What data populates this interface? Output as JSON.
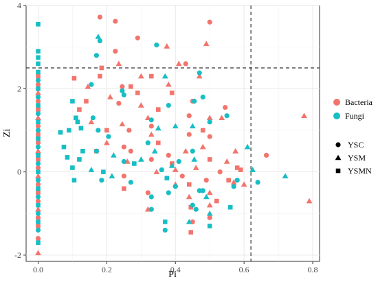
{
  "chart_data": {
    "type": "scatter",
    "title": "",
    "xlabel": "Pi",
    "ylabel": "Zi",
    "xlim": [
      -0.035,
      0.82
    ],
    "ylim": [
      -2.15,
      4.0
    ],
    "xticks": [
      0.0,
      0.2,
      0.4,
      0.6,
      0.8
    ],
    "xtick_labels": [
      "0.0",
      "0.2",
      "0.4",
      "0.6",
      "0.8"
    ],
    "yticks": [
      -2,
      0,
      2,
      4
    ],
    "ytick_labels": [
      "-2",
      "0",
      "2",
      "4"
    ],
    "grid": true,
    "thresholds": {
      "x": 0.62,
      "y": 2.5,
      "style": "dashed"
    },
    "legend_position": "right",
    "color_legend": [
      {
        "name": "Bacteria",
        "color": "#F2756D"
      },
      {
        "name": "Fungi",
        "color": "#17BEC4"
      }
    ],
    "shape_legend": [
      {
        "name": "YSC",
        "shape": "circle"
      },
      {
        "name": "YSM",
        "shape": "triangle"
      },
      {
        "name": "YSMN",
        "shape": "square"
      }
    ],
    "series": [
      {
        "group": "Bacteria",
        "color": "#F2756D",
        "points": [
          [
            0.0,
            2.3,
            "s"
          ],
          [
            0.0,
            2.1,
            "c"
          ],
          [
            0.0,
            1.9,
            "t"
          ],
          [
            0.0,
            1.7,
            "c"
          ],
          [
            0.0,
            1.5,
            "s"
          ],
          [
            0.0,
            1.3,
            "t"
          ],
          [
            0.0,
            1.1,
            "c"
          ],
          [
            0.0,
            0.9,
            "s"
          ],
          [
            0.0,
            0.7,
            "c"
          ],
          [
            0.0,
            0.5,
            "t"
          ],
          [
            0.0,
            0.3,
            "s"
          ],
          [
            0.0,
            0.1,
            "c"
          ],
          [
            0.0,
            -0.1,
            "t"
          ],
          [
            0.0,
            -0.3,
            "c"
          ],
          [
            0.0,
            -0.5,
            "s"
          ],
          [
            0.0,
            -0.7,
            "c"
          ],
          [
            0.0,
            -0.9,
            "t"
          ],
          [
            0.0,
            -1.1,
            "c"
          ],
          [
            0.0,
            -1.3,
            "s"
          ],
          [
            0.0,
            -1.6,
            "c"
          ],
          [
            0.0,
            -1.95,
            "t"
          ],
          [
            0.18,
            3.72,
            "c"
          ],
          [
            0.225,
            3.62,
            "c"
          ],
          [
            0.29,
            3.22,
            "c"
          ],
          [
            0.375,
            3.02,
            "t"
          ],
          [
            0.5,
            3.6,
            "c"
          ],
          [
            0.49,
            3.08,
            "t"
          ],
          [
            0.225,
            2.9,
            "c"
          ],
          [
            0.185,
            2.5,
            "s"
          ],
          [
            0.18,
            2.3,
            "s"
          ],
          [
            0.235,
            2.6,
            "t"
          ],
          [
            0.27,
            2.05,
            "s"
          ],
          [
            0.235,
            1.65,
            "c"
          ],
          [
            0.245,
            2.05,
            "c"
          ],
          [
            0.3,
            2.3,
            "t"
          ],
          [
            0.33,
            2.3,
            "s"
          ],
          [
            0.41,
            2.6,
            "t"
          ],
          [
            0.43,
            2.6,
            "c"
          ],
          [
            0.38,
            2.1,
            "t"
          ],
          [
            0.39,
            1.9,
            "s"
          ],
          [
            0.35,
            1.5,
            "s"
          ],
          [
            0.3,
            1.6,
            "t"
          ],
          [
            0.32,
            1.3,
            "t"
          ],
          [
            0.45,
            1.7,
            "c"
          ],
          [
            0.47,
            2.3,
            "t"
          ],
          [
            0.545,
            1.55,
            "c"
          ],
          [
            0.535,
            1.3,
            "t"
          ],
          [
            0.5,
            1.3,
            "t"
          ],
          [
            0.44,
            0.9,
            "c"
          ],
          [
            0.43,
            0.5,
            "t"
          ],
          [
            0.33,
            0.9,
            "t"
          ],
          [
            0.35,
            0.7,
            "s"
          ],
          [
            0.25,
            0.6,
            "c"
          ],
          [
            0.245,
            1.15,
            "t"
          ],
          [
            0.2,
            1.0,
            "s"
          ],
          [
            0.2,
            0.7,
            "t"
          ],
          [
            0.14,
            1.7,
            "s"
          ],
          [
            0.155,
            1.2,
            "t"
          ],
          [
            0.12,
            1.5,
            "s"
          ],
          [
            0.105,
            2.25,
            "s"
          ],
          [
            0.145,
            2.05,
            "t"
          ],
          [
            0.21,
            1.8,
            "t"
          ],
          [
            0.265,
            1.0,
            "c"
          ],
          [
            0.27,
            0.5,
            "c"
          ],
          [
            0.33,
            0.3,
            "c"
          ],
          [
            0.345,
            0.0,
            "t"
          ],
          [
            0.38,
            0.4,
            "c"
          ],
          [
            0.39,
            0.2,
            "s"
          ],
          [
            0.4,
            0.05,
            "t"
          ],
          [
            0.42,
            -0.1,
            "c"
          ],
          [
            0.44,
            -0.3,
            "s"
          ],
          [
            0.46,
            0.1,
            "t"
          ],
          [
            0.48,
            0.6,
            "t"
          ],
          [
            0.5,
            0.3,
            "s"
          ],
          [
            0.49,
            -0.2,
            "c"
          ],
          [
            0.5,
            -0.5,
            "t"
          ],
          [
            0.52,
            -0.7,
            "s"
          ],
          [
            0.53,
            0.0,
            "c"
          ],
          [
            0.55,
            0.25,
            "t"
          ],
          [
            0.555,
            -0.2,
            "s"
          ],
          [
            0.57,
            -0.25,
            "t"
          ],
          [
            0.575,
            0.5,
            "t"
          ],
          [
            0.58,
            0.1,
            "s"
          ],
          [
            0.59,
            0.05,
            "s"
          ],
          [
            0.6,
            -0.3,
            "t"
          ],
          [
            0.665,
            0.4,
            "c"
          ],
          [
            0.775,
            1.35,
            "t"
          ],
          [
            0.79,
            -0.7,
            "t"
          ],
          [
            0.25,
            -0.4,
            "s"
          ],
          [
            0.25,
            -0.1,
            "c"
          ],
          [
            0.32,
            -0.5,
            "c"
          ],
          [
            0.32,
            -0.9,
            "t"
          ],
          [
            0.4,
            -0.3,
            "t"
          ],
          [
            0.44,
            -0.6,
            "t"
          ],
          [
            0.445,
            -0.85,
            "s"
          ],
          [
            0.445,
            -1.45,
            "s"
          ],
          [
            0.45,
            -1.2,
            "c"
          ],
          [
            0.5,
            -1.1,
            "c"
          ],
          [
            0.5,
            -0.8,
            "t"
          ],
          [
            0.33,
            1.1,
            "c"
          ],
          [
            0.44,
            1.35,
            "c"
          ],
          [
            0.48,
            1.0,
            "s"
          ],
          [
            0.5,
            0.85,
            "c"
          ],
          [
            0.29,
            1.9,
            "s"
          ],
          [
            0.17,
            0.5,
            "s"
          ],
          [
            0.26,
            0.25,
            "t"
          ]
        ]
      },
      {
        "group": "Fungi",
        "color": "#17BEC4",
        "points": [
          [
            0.0,
            3.55,
            "s"
          ],
          [
            0.0,
            2.9,
            "s"
          ],
          [
            0.0,
            2.75,
            "s"
          ],
          [
            0.0,
            2.6,
            "s"
          ],
          [
            0.0,
            2.4,
            "s"
          ],
          [
            0.0,
            2.2,
            "c"
          ],
          [
            0.0,
            2.0,
            "s"
          ],
          [
            0.0,
            1.8,
            "c"
          ],
          [
            0.0,
            1.6,
            "s"
          ],
          [
            0.0,
            1.4,
            "c"
          ],
          [
            0.0,
            1.2,
            "s"
          ],
          [
            0.0,
            1.0,
            "c"
          ],
          [
            0.0,
            0.8,
            "s"
          ],
          [
            0.0,
            0.6,
            "c"
          ],
          [
            0.0,
            0.4,
            "s"
          ],
          [
            0.0,
            0.2,
            "c"
          ],
          [
            0.0,
            0.0,
            "s"
          ],
          [
            0.0,
            -0.2,
            "c"
          ],
          [
            0.0,
            -0.4,
            "s"
          ],
          [
            0.0,
            -0.6,
            "c"
          ],
          [
            0.0,
            -0.8,
            "s"
          ],
          [
            0.0,
            -1.0,
            "c"
          ],
          [
            0.0,
            -1.2,
            "s"
          ],
          [
            0.0,
            -1.4,
            "c"
          ],
          [
            0.0,
            -1.7,
            "s"
          ],
          [
            0.175,
            3.25,
            "t"
          ],
          [
            0.18,
            3.15,
            "c"
          ],
          [
            0.345,
            3.05,
            "c"
          ],
          [
            0.17,
            2.8,
            "c"
          ],
          [
            0.47,
            2.38,
            "c"
          ],
          [
            0.37,
            2.3,
            "t"
          ],
          [
            0.155,
            2.1,
            "c"
          ],
          [
            0.245,
            1.95,
            "c"
          ],
          [
            0.25,
            1.85,
            "c"
          ],
          [
            0.455,
            1.7,
            "c"
          ],
          [
            0.1,
            1.7,
            "s"
          ],
          [
            0.11,
            1.3,
            "s"
          ],
          [
            0.115,
            1.2,
            "s"
          ],
          [
            0.125,
            1.05,
            "s"
          ],
          [
            0.09,
            1.0,
            "s"
          ],
          [
            0.065,
            0.95,
            "s"
          ],
          [
            0.16,
            1.3,
            "c"
          ],
          [
            0.175,
            1.0,
            "c"
          ],
          [
            0.205,
            0.85,
            "c"
          ],
          [
            0.22,
            0.4,
            "t"
          ],
          [
            0.17,
            0.5,
            "c"
          ],
          [
            0.13,
            0.5,
            "s"
          ],
          [
            0.12,
            0.3,
            "s"
          ],
          [
            0.075,
            0.6,
            "s"
          ],
          [
            0.085,
            0.35,
            "s"
          ],
          [
            0.1,
            0.1,
            "s"
          ],
          [
            0.105,
            -0.2,
            "s"
          ],
          [
            0.155,
            0.05,
            "t"
          ],
          [
            0.185,
            -0.2,
            "c"
          ],
          [
            0.19,
            0.0,
            "s"
          ],
          [
            0.215,
            -0.1,
            "t"
          ],
          [
            0.25,
            0.25,
            "c"
          ],
          [
            0.28,
            0.2,
            "s"
          ],
          [
            0.32,
            0.7,
            "c"
          ],
          [
            0.34,
            0.5,
            "t"
          ],
          [
            0.36,
            0.05,
            "c"
          ],
          [
            0.375,
            -0.15,
            "s"
          ],
          [
            0.39,
            0.15,
            "t"
          ],
          [
            0.41,
            0.25,
            "c"
          ],
          [
            0.45,
            0.5,
            "c"
          ],
          [
            0.455,
            0.3,
            "t"
          ],
          [
            0.47,
            -0.45,
            "c"
          ],
          [
            0.48,
            -0.45,
            "c"
          ],
          [
            0.49,
            -0.6,
            "t"
          ],
          [
            0.45,
            -0.8,
            "c"
          ],
          [
            0.5,
            -1.0,
            "t"
          ],
          [
            0.5,
            -1.3,
            "s"
          ],
          [
            0.38,
            -0.5,
            "c"
          ],
          [
            0.37,
            -1.2,
            "s"
          ],
          [
            0.37,
            -1.4,
            "c"
          ],
          [
            0.44,
            -1.2,
            "t"
          ],
          [
            0.46,
            -0.9,
            "c"
          ],
          [
            0.33,
            -0.9,
            "c"
          ],
          [
            0.33,
            -0.6,
            "c"
          ],
          [
            0.57,
            -0.35,
            "c"
          ],
          [
            0.56,
            -0.85,
            "s"
          ],
          [
            0.58,
            -0.2,
            "c"
          ],
          [
            0.61,
            0.6,
            "t"
          ],
          [
            0.625,
            0.05,
            "t"
          ],
          [
            0.64,
            -0.25,
            "c"
          ],
          [
            0.72,
            -0.1,
            "t"
          ],
          [
            0.55,
            1.35,
            "c"
          ],
          [
            0.48,
            1.8,
            "c"
          ],
          [
            0.5,
            1.2,
            "c"
          ],
          [
            0.45,
            1.1,
            "t"
          ],
          [
            0.4,
            1.1,
            "t"
          ],
          [
            0.33,
            1.25,
            "c"
          ],
          [
            0.38,
            1.6,
            "c"
          ],
          [
            0.3,
            0.3,
            "t"
          ],
          [
            0.27,
            -0.25,
            "c"
          ],
          [
            0.4,
            -0.35,
            "c"
          ],
          [
            0.35,
            1.05,
            "t"
          ]
        ]
      }
    ]
  }
}
